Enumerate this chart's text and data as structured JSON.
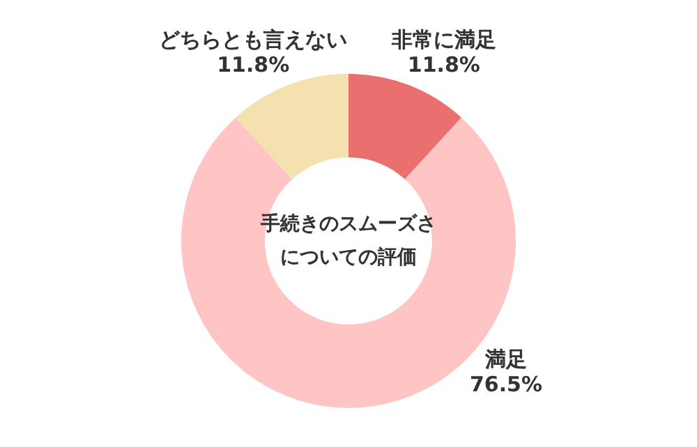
{
  "chart_data": {
    "type": "donut",
    "title": "手続きのスムーズさについての評価",
    "categories": [
      "非常に満足",
      "満足",
      "どちらとも言えない"
    ],
    "values": [
      11.8,
      76.5,
      11.8
    ],
    "colors": [
      "#ea7070",
      "#ffc4c4",
      "#f5e1b0"
    ],
    "value_labels": [
      "11.8%",
      "76.5%",
      "11.8%"
    ],
    "legend": false
  }
}
